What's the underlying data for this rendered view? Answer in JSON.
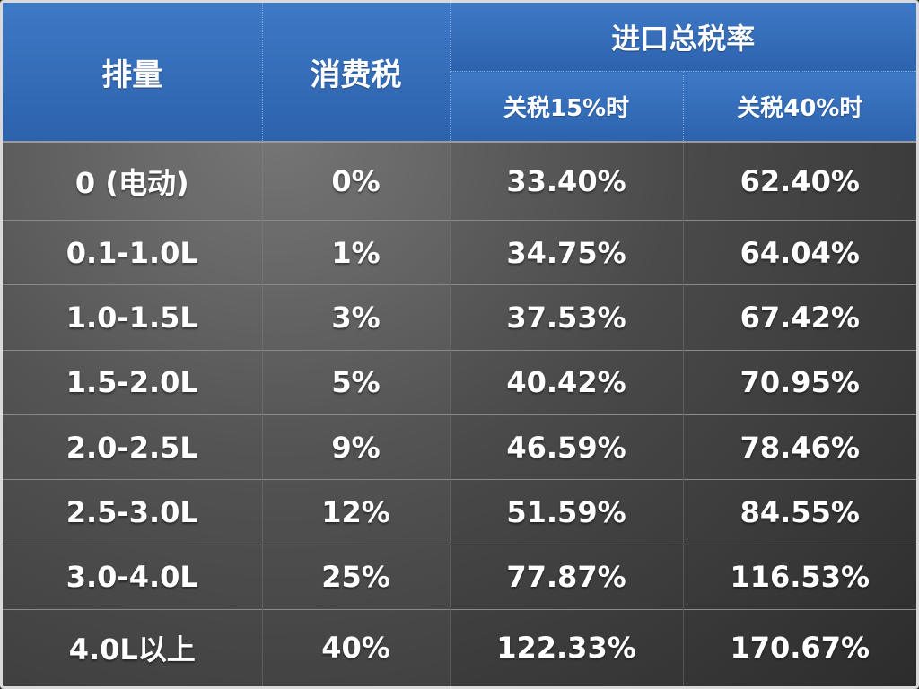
{
  "chart_data": {
    "type": "table",
    "headers": {
      "displacement": "排量",
      "consumption_tax": "消费税",
      "total_import_tax": "进口总税率",
      "tariff_15": "关税15%时",
      "tariff_40": "关税40%时"
    },
    "rows": [
      {
        "displacement": "0 (电动)",
        "consumption_tax": "0%",
        "tariff_15": "33.40%",
        "tariff_40": "62.40%"
      },
      {
        "displacement": "0.1-1.0L",
        "consumption_tax": "1%",
        "tariff_15": "34.75%",
        "tariff_40": "64.04%"
      },
      {
        "displacement": "1.0-1.5L",
        "consumption_tax": "3%",
        "tariff_15": "37.53%",
        "tariff_40": "67.42%"
      },
      {
        "displacement": "1.5-2.0L",
        "consumption_tax": "5%",
        "tariff_15": "40.42%",
        "tariff_40": "70.95%"
      },
      {
        "displacement": "2.0-2.5L",
        "consumption_tax": "9%",
        "tariff_15": "46.59%",
        "tariff_40": "78.46%"
      },
      {
        "displacement": "2.5-3.0L",
        "consumption_tax": "12%",
        "tariff_15": "51.59%",
        "tariff_40": "84.55%"
      },
      {
        "displacement": "3.0-4.0L",
        "consumption_tax": "25%",
        "tariff_15": "77.87%",
        "tariff_40": "116.53%"
      },
      {
        "displacement": "4.0L以上",
        "consumption_tax": "40%",
        "tariff_15": "122.33%",
        "tariff_40": "170.67%"
      }
    ]
  },
  "colors": {
    "header_blue": "#2d62ad",
    "body_gray": "#4a4a4a",
    "text": "#ffffff"
  }
}
